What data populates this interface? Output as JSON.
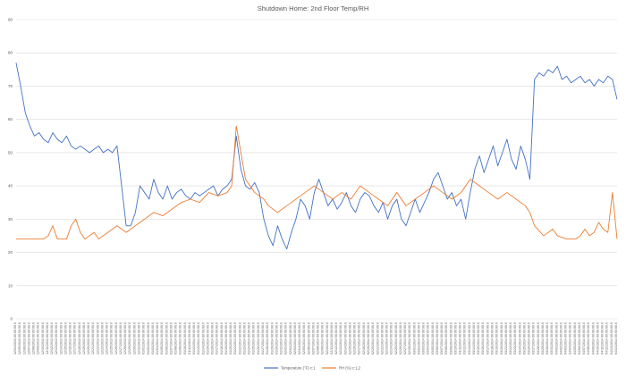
{
  "chart_data": {
    "type": "line",
    "title": "Shutdown Home: 2nd Floor Temp/RH",
    "ylim": [
      0,
      90
    ],
    "y_ticks": [
      0,
      10,
      20,
      30,
      40,
      50,
      60,
      70,
      80,
      90
    ],
    "grid": true,
    "legend_position": "bottom",
    "x_date_range": [
      "2013-12-04",
      "2014-04-14"
    ],
    "x_label_step_days": 1,
    "series": [
      {
        "name": "Temperature (°F) c:1",
        "color": "#4472c4",
        "points": [
          [
            "2013-12-04",
            77
          ],
          [
            "2013-12-05",
            70
          ],
          [
            "2013-12-06",
            62
          ],
          [
            "2013-12-07",
            58
          ],
          [
            "2013-12-08",
            55
          ],
          [
            "2013-12-09",
            56
          ],
          [
            "2013-12-10",
            54
          ],
          [
            "2013-12-11",
            53
          ],
          [
            "2013-12-12",
            56
          ],
          [
            "2013-12-13",
            54
          ],
          [
            "2013-12-14",
            53
          ],
          [
            "2013-12-15",
            55
          ],
          [
            "2013-12-16",
            52
          ],
          [
            "2013-12-17",
            51
          ],
          [
            "2013-12-18",
            52
          ],
          [
            "2013-12-19",
            51
          ],
          [
            "2013-12-20",
            50
          ],
          [
            "2013-12-21",
            51
          ],
          [
            "2013-12-22",
            52
          ],
          [
            "2013-12-23",
            50
          ],
          [
            "2013-12-24",
            51
          ],
          [
            "2013-12-25",
            50
          ],
          [
            "2013-12-26",
            52
          ],
          [
            "2013-12-27",
            40
          ],
          [
            "2013-12-28",
            28
          ],
          [
            "2013-12-29",
            28
          ],
          [
            "2013-12-30",
            32
          ],
          [
            "2013-12-31",
            40
          ],
          [
            "2014-01-01",
            38
          ],
          [
            "2014-01-02",
            36
          ],
          [
            "2014-01-03",
            42
          ],
          [
            "2014-01-04",
            38
          ],
          [
            "2014-01-05",
            36
          ],
          [
            "2014-01-06",
            40
          ],
          [
            "2014-01-07",
            36
          ],
          [
            "2014-01-08",
            38
          ],
          [
            "2014-01-09",
            39
          ],
          [
            "2014-01-10",
            37
          ],
          [
            "2014-01-11",
            36
          ],
          [
            "2014-01-12",
            38
          ],
          [
            "2014-01-13",
            37
          ],
          [
            "2014-01-14",
            38
          ],
          [
            "2014-01-15",
            39
          ],
          [
            "2014-01-16",
            40
          ],
          [
            "2014-01-17",
            37
          ],
          [
            "2014-01-18",
            39
          ],
          [
            "2014-01-19",
            40
          ],
          [
            "2014-01-20",
            42
          ],
          [
            "2014-01-21",
            55
          ],
          [
            "2014-01-22",
            45
          ],
          [
            "2014-01-23",
            40
          ],
          [
            "2014-01-24",
            39
          ],
          [
            "2014-01-25",
            41
          ],
          [
            "2014-01-26",
            38
          ],
          [
            "2014-01-27",
            30
          ],
          [
            "2014-01-28",
            25
          ],
          [
            "2014-01-29",
            22
          ],
          [
            "2014-01-30",
            28
          ],
          [
            "2014-01-31",
            24
          ],
          [
            "2014-02-01",
            21
          ],
          [
            "2014-02-02",
            26
          ],
          [
            "2014-02-03",
            30
          ],
          [
            "2014-02-04",
            36
          ],
          [
            "2014-02-05",
            34
          ],
          [
            "2014-02-06",
            30
          ],
          [
            "2014-02-07",
            38
          ],
          [
            "2014-02-08",
            42
          ],
          [
            "2014-02-09",
            38
          ],
          [
            "2014-02-10",
            34
          ],
          [
            "2014-02-11",
            36
          ],
          [
            "2014-02-12",
            33
          ],
          [
            "2014-02-13",
            35
          ],
          [
            "2014-02-14",
            38
          ],
          [
            "2014-02-15",
            34
          ],
          [
            "2014-02-16",
            32
          ],
          [
            "2014-02-17",
            36
          ],
          [
            "2014-02-18",
            38
          ],
          [
            "2014-02-19",
            37
          ],
          [
            "2014-02-20",
            34
          ],
          [
            "2014-02-21",
            32
          ],
          [
            "2014-02-22",
            35
          ],
          [
            "2014-02-23",
            30
          ],
          [
            "2014-02-24",
            34
          ],
          [
            "2014-02-25",
            36
          ],
          [
            "2014-02-26",
            30
          ],
          [
            "2014-02-27",
            28
          ],
          [
            "2014-02-28",
            32
          ],
          [
            "2014-03-01",
            36
          ],
          [
            "2014-03-02",
            32
          ],
          [
            "2014-03-03",
            35
          ],
          [
            "2014-03-04",
            38
          ],
          [
            "2014-03-05",
            42
          ],
          [
            "2014-03-06",
            44
          ],
          [
            "2014-03-07",
            40
          ],
          [
            "2014-03-08",
            36
          ],
          [
            "2014-03-09",
            38
          ],
          [
            "2014-03-10",
            34
          ],
          [
            "2014-03-11",
            36
          ],
          [
            "2014-03-12",
            30
          ],
          [
            "2014-03-13",
            38
          ],
          [
            "2014-03-14",
            45
          ],
          [
            "2014-03-15",
            49
          ],
          [
            "2014-03-16",
            44
          ],
          [
            "2014-03-17",
            48
          ],
          [
            "2014-03-18",
            52
          ],
          [
            "2014-03-19",
            46
          ],
          [
            "2014-03-20",
            50
          ],
          [
            "2014-03-21",
            54
          ],
          [
            "2014-03-22",
            48
          ],
          [
            "2014-03-23",
            45
          ],
          [
            "2014-03-24",
            52
          ],
          [
            "2014-03-25",
            48
          ],
          [
            "2014-03-26",
            42
          ],
          [
            "2014-03-27",
            72
          ],
          [
            "2014-03-28",
            74
          ],
          [
            "2014-03-29",
            73
          ],
          [
            "2014-03-30",
            75
          ],
          [
            "2014-03-31",
            74
          ],
          [
            "2014-04-01",
            76
          ],
          [
            "2014-04-02",
            72
          ],
          [
            "2014-04-03",
            73
          ],
          [
            "2014-04-04",
            71
          ],
          [
            "2014-04-05",
            72
          ],
          [
            "2014-04-06",
            73
          ],
          [
            "2014-04-07",
            71
          ],
          [
            "2014-04-08",
            72
          ],
          [
            "2014-04-09",
            70
          ],
          [
            "2014-04-10",
            72
          ],
          [
            "2014-04-11",
            71
          ],
          [
            "2014-04-12",
            73
          ],
          [
            "2014-04-13",
            72
          ],
          [
            "2014-04-14",
            66
          ]
        ]
      },
      {
        "name": "RH (%) c:1,2",
        "color": "#ed7d31",
        "points": [
          [
            "2013-12-04",
            24
          ],
          [
            "2013-12-06",
            24
          ],
          [
            "2013-12-08",
            24
          ],
          [
            "2013-12-10",
            24
          ],
          [
            "2013-12-11",
            25
          ],
          [
            "2013-12-12",
            28
          ],
          [
            "2013-12-13",
            24
          ],
          [
            "2013-12-15",
            24
          ],
          [
            "2013-12-16",
            28
          ],
          [
            "2013-12-17",
            30
          ],
          [
            "2013-12-18",
            26
          ],
          [
            "2013-12-19",
            24
          ],
          [
            "2013-12-21",
            26
          ],
          [
            "2013-12-22",
            24
          ],
          [
            "2013-12-24",
            26
          ],
          [
            "2013-12-26",
            28
          ],
          [
            "2013-12-28",
            26
          ],
          [
            "2013-12-30",
            28
          ],
          [
            "2014-01-01",
            30
          ],
          [
            "2014-01-03",
            32
          ],
          [
            "2014-01-05",
            31
          ],
          [
            "2014-01-07",
            33
          ],
          [
            "2014-01-09",
            35
          ],
          [
            "2014-01-11",
            36
          ],
          [
            "2014-01-13",
            35
          ],
          [
            "2014-01-15",
            38
          ],
          [
            "2014-01-17",
            37
          ],
          [
            "2014-01-19",
            38
          ],
          [
            "2014-01-20",
            40
          ],
          [
            "2014-01-21",
            58
          ],
          [
            "2014-01-22",
            50
          ],
          [
            "2014-01-23",
            42
          ],
          [
            "2014-01-25",
            38
          ],
          [
            "2014-01-27",
            36
          ],
          [
            "2014-01-28",
            34
          ],
          [
            "2014-01-30",
            32
          ],
          [
            "2014-02-01",
            34
          ],
          [
            "2014-02-03",
            36
          ],
          [
            "2014-02-05",
            38
          ],
          [
            "2014-02-07",
            40
          ],
          [
            "2014-02-09",
            38
          ],
          [
            "2014-02-11",
            36
          ],
          [
            "2014-02-13",
            38
          ],
          [
            "2014-02-15",
            36
          ],
          [
            "2014-02-17",
            40
          ],
          [
            "2014-02-19",
            38
          ],
          [
            "2014-02-21",
            36
          ],
          [
            "2014-02-23",
            34
          ],
          [
            "2014-02-25",
            38
          ],
          [
            "2014-02-27",
            34
          ],
          [
            "2014-03-01",
            36
          ],
          [
            "2014-03-03",
            38
          ],
          [
            "2014-03-05",
            40
          ],
          [
            "2014-03-07",
            38
          ],
          [
            "2014-03-09",
            36
          ],
          [
            "2014-03-11",
            38
          ],
          [
            "2014-03-13",
            42
          ],
          [
            "2014-03-15",
            40
          ],
          [
            "2014-03-17",
            38
          ],
          [
            "2014-03-19",
            36
          ],
          [
            "2014-03-21",
            38
          ],
          [
            "2014-03-23",
            36
          ],
          [
            "2014-03-25",
            34
          ],
          [
            "2014-03-26",
            32
          ],
          [
            "2014-03-27",
            28
          ],
          [
            "2014-03-29",
            25
          ],
          [
            "2014-03-31",
            27
          ],
          [
            "2014-04-01",
            25
          ],
          [
            "2014-04-03",
            24
          ],
          [
            "2014-04-05",
            24
          ],
          [
            "2014-04-06",
            25
          ],
          [
            "2014-04-07",
            27
          ],
          [
            "2014-04-08",
            25
          ],
          [
            "2014-04-09",
            26
          ],
          [
            "2014-04-10",
            29
          ],
          [
            "2014-04-11",
            27
          ],
          [
            "2014-04-12",
            26
          ],
          [
            "2014-04-13",
            38
          ],
          [
            "2014-04-14",
            24
          ]
        ]
      }
    ]
  }
}
